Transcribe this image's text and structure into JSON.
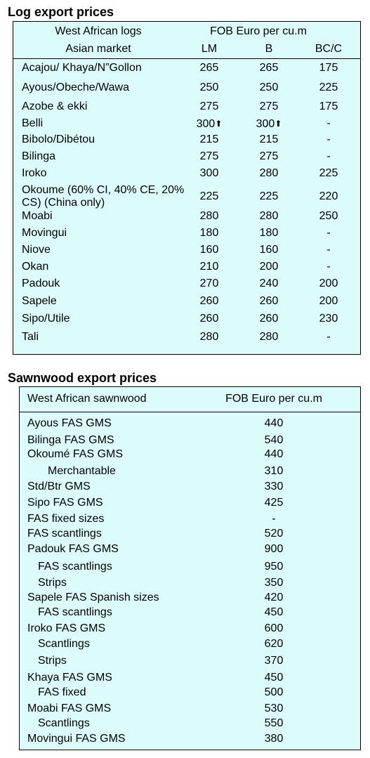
{
  "log_section": {
    "title": "Log export prices",
    "header_left_top": "West African logs",
    "header_left_bottom": "Asian market",
    "header_right_top": "FOB Euro per cu.m",
    "col_lm": "LM",
    "col_b": "B",
    "col_bcc": "BC/C",
    "rows": [
      {
        "name": "Acajou/ Khaya/N”Gollon",
        "lm": "265",
        "b": "265",
        "bcc": "175"
      },
      {
        "name": "Ayous/Obeche/Wawa",
        "lm": "250",
        "b": "250",
        "bcc": "225"
      },
      {
        "name": "Azobe & ekki",
        "lm": "275",
        "b": "275",
        "bcc": "175"
      },
      {
        "name": "Belli",
        "lm": "300",
        "b": "300",
        "bcc": "-",
        "lm_up": "⬆",
        "b_up": "⬆"
      },
      {
        "name": "Bibolo/Dibétou",
        "lm": "215",
        "b": "215",
        "bcc": "-"
      },
      {
        "name": "Bilinga",
        "lm": "275",
        "b": "275",
        "bcc": "-"
      },
      {
        "name": "Iroko",
        "lm": "300",
        "b": "280",
        "bcc": "225"
      },
      {
        "name": "Okoume (60% CI, 40% CE, 20% CS) (China only)",
        "lm": "225",
        "b": "225",
        "bcc": "220"
      },
      {
        "name": "Moabi",
        "lm": "280",
        "b": "280",
        "bcc": "250"
      },
      {
        "name": "Movingui",
        "lm": "180",
        "b": "180",
        "bcc": "-"
      },
      {
        "name": "Niove",
        "lm": "160",
        "b": "160",
        "bcc": "-"
      },
      {
        "name": "Okan",
        "lm": "210",
        "b": "200",
        "bcc": "-"
      },
      {
        "name": "Padouk",
        "lm": "270",
        "b": "240",
        "bcc": "200"
      },
      {
        "name": "Sapele",
        "lm": "260",
        "b": "260",
        "bcc": "200"
      },
      {
        "name": "Sipo/Utile",
        "lm": "260",
        "b": "260",
        "bcc": "230"
      },
      {
        "name": "Tali",
        "lm": "280",
        "b": "280",
        "bcc": "-"
      }
    ]
  },
  "sawn_section": {
    "title": "Sawnwood export prices",
    "header_left": "West African sawnwood",
    "header_right": "FOB Euro per cu.m",
    "rows": [
      {
        "name": "Ayous FAS GMS",
        "price": "440"
      },
      {
        "name": "Bilinga FAS GMS",
        "price": "540"
      },
      {
        "name": "Okoumé FAS GMS",
        "price": "440"
      },
      {
        "name": "Merchantable",
        "price": "310"
      },
      {
        "name": "Std/Btr GMS",
        "price": "330"
      },
      {
        "name": "Sipo FAS GMS",
        "price": "425"
      },
      {
        "name": "FAS fixed sizes",
        "price": "-"
      },
      {
        "name": "FAS scantlings",
        "price": "520"
      },
      {
        "name": "Padouk FAS GMS",
        "price": "900"
      },
      {
        "name": "FAS scantlings",
        "price": "950"
      },
      {
        "name": "Strips",
        "price": "350"
      },
      {
        "name": "Sapele FAS Spanish sizes",
        "price": "420"
      },
      {
        "name": "FAS scantlings",
        "price": "450"
      },
      {
        "name": "Iroko FAS GMS",
        "price": "600"
      },
      {
        "name": "Scantlings",
        "price": "620"
      },
      {
        "name": "Strips",
        "price": "370"
      },
      {
        "name": "Khaya FAS GMS",
        "price": "450"
      },
      {
        "name": "FAS fixed",
        "price": "500"
      },
      {
        "name": "Moabi FAS GMS",
        "price": "530"
      },
      {
        "name": "Scantlings",
        "price": "550"
      },
      {
        "name": "Movingui FAS GMS",
        "price": "380"
      }
    ]
  },
  "colors": {
    "panel_background": "#dcfcfc",
    "border": "#000000"
  }
}
